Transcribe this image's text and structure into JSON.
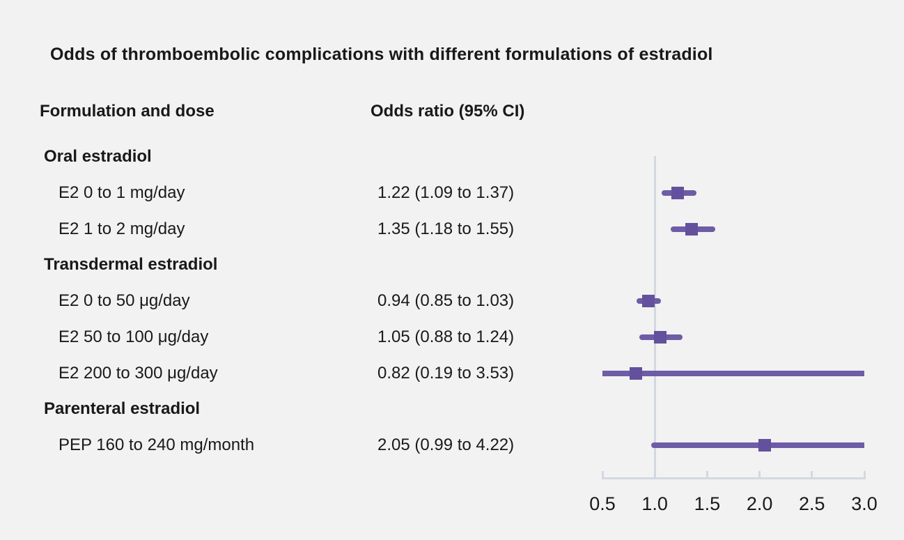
{
  "title": "Odds of thromboembolic complications with different formulations of estradiol",
  "columns": {
    "formulation": "Formulation and dose",
    "odds_ratio": "Odds ratio (95% CI)"
  },
  "colors": {
    "background": "#f2f2f2",
    "text": "#191919",
    "ci_line": "#6e5ca6",
    "marker_square": "#63519d",
    "axis_line": "#d3d8e0",
    "reference_line": "#d3d8e0"
  },
  "chart_data": {
    "type": "scatter",
    "subtype": "forest-plot",
    "title": "Odds of thromboembolic complications with different formulations of estradiol",
    "xlabel": "",
    "xlim": [
      0.5,
      3.0
    ],
    "x_ticks": [
      "0.5",
      "1.0",
      "1.5",
      "2.0",
      "2.5",
      "3.0"
    ],
    "reference_line_x": 1.0,
    "legend": null,
    "grid": false,
    "rows": [
      {
        "kind": "group",
        "label": "Oral estradiol"
      },
      {
        "kind": "item",
        "label": "E2 0 to 1 mg/day",
        "or_text": "1.22 (1.09 to 1.37)",
        "or": 1.22,
        "ci_low": 1.09,
        "ci_high": 1.37
      },
      {
        "kind": "item",
        "label": "E2 1 to 2 mg/day",
        "or_text": "1.35 (1.18 to 1.55)",
        "or": 1.35,
        "ci_low": 1.18,
        "ci_high": 1.55
      },
      {
        "kind": "group",
        "label": "Transdermal estradiol"
      },
      {
        "kind": "item",
        "label": "E2 0 to 50 μg/day",
        "or_text": "0.94 (0.85 to 1.03)",
        "or": 0.94,
        "ci_low": 0.85,
        "ci_high": 1.03
      },
      {
        "kind": "item",
        "label": "E2 50 to 100 μg/day",
        "or_text": "1.05 (0.88 to 1.24)",
        "or": 1.05,
        "ci_low": 0.88,
        "ci_high": 1.24
      },
      {
        "kind": "item",
        "label": "E2 200 to 300 μg/day",
        "or_text": "0.82 (0.19 to 3.53)",
        "or": 0.82,
        "ci_low": 0.19,
        "ci_high": 3.53
      },
      {
        "kind": "group",
        "label": "Parenteral estradiol"
      },
      {
        "kind": "item",
        "label": "PEP 160 to 240 mg/month",
        "or_text": "2.05 (0.99 to 4.22)",
        "or": 2.05,
        "ci_low": 0.99,
        "ci_high": 4.22
      }
    ]
  }
}
